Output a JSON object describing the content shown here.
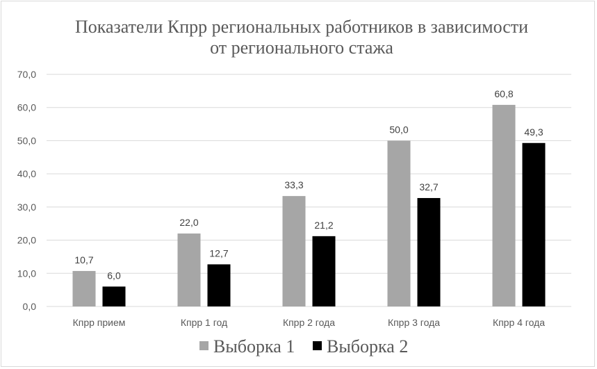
{
  "colors": {
    "series1": "#a6a6a6",
    "series2": "#000000",
    "grid": "#d9d9d9",
    "text": "#595959"
  },
  "chart_data": {
    "type": "bar",
    "title": "Показатели Кпрр региональных работников в зависимости от регионального стажа",
    "title_lines": [
      "Показатели Кпрр региональных работников в зависимости",
      "от регионального  стажа"
    ],
    "categories": [
      "Кпрр прием",
      "Кпрр 1 год",
      "Кпрр 2 года",
      "Кпрр 3 года",
      "Кпрр 4 года"
    ],
    "series": [
      {
        "name": "Выборка 1",
        "values": [
          10.7,
          22.0,
          33.3,
          50.0,
          60.8
        ],
        "labels": [
          "10,7",
          "22,0",
          "33,3",
          "50,0",
          "60,8"
        ]
      },
      {
        "name": "Выборка 2",
        "values": [
          6.0,
          12.7,
          21.2,
          32.7,
          49.3
        ],
        "labels": [
          "6,0",
          "12,7",
          "21,2",
          "32,7",
          "49,3"
        ]
      }
    ],
    "ylim": [
      0,
      70
    ],
    "yticks": [
      0,
      10,
      20,
      30,
      40,
      50,
      60,
      70
    ],
    "ytick_labels": [
      "0,0",
      "10,0",
      "20,0",
      "30,0",
      "40,0",
      "50,0",
      "60,0",
      "70,0"
    ],
    "grid": true,
    "legend_position": "bottom"
  }
}
